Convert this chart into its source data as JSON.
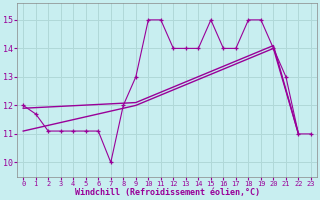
{
  "xlabel": "Windchill (Refroidissement éolien,°C)",
  "background_color": "#c8eef0",
  "grid_color": "#b0d8d8",
  "line_color": "#990099",
  "x_ticks": [
    0,
    1,
    2,
    3,
    4,
    5,
    6,
    7,
    8,
    9,
    10,
    11,
    12,
    13,
    14,
    15,
    16,
    17,
    18,
    19,
    20,
    21,
    22,
    23
  ],
  "y_ticks": [
    10,
    11,
    12,
    13,
    14,
    15
  ],
  "xlim": [
    -0.5,
    23.5
  ],
  "ylim": [
    9.5,
    15.6
  ],
  "series1_x": [
    0,
    1,
    2,
    3,
    4,
    5,
    6,
    7,
    8,
    9,
    10,
    11,
    12,
    13,
    14,
    15,
    16,
    17,
    18,
    19,
    20,
    21,
    22,
    23
  ],
  "series1_y": [
    12.0,
    11.7,
    11.1,
    11.1,
    11.1,
    11.1,
    11.1,
    10.0,
    12.0,
    13.0,
    15.0,
    15.0,
    14.0,
    14.0,
    14.0,
    15.0,
    14.0,
    14.0,
    15.0,
    15.0,
    14.0,
    13.0,
    11.0,
    11.0
  ],
  "series2_x": [
    0,
    9,
    20,
    22
  ],
  "series2_y": [
    11.1,
    12.0,
    14.0,
    11.0
  ],
  "series3_x": [
    0,
    9,
    20,
    22
  ],
  "series3_y": [
    11.9,
    12.1,
    14.1,
    11.0
  ]
}
